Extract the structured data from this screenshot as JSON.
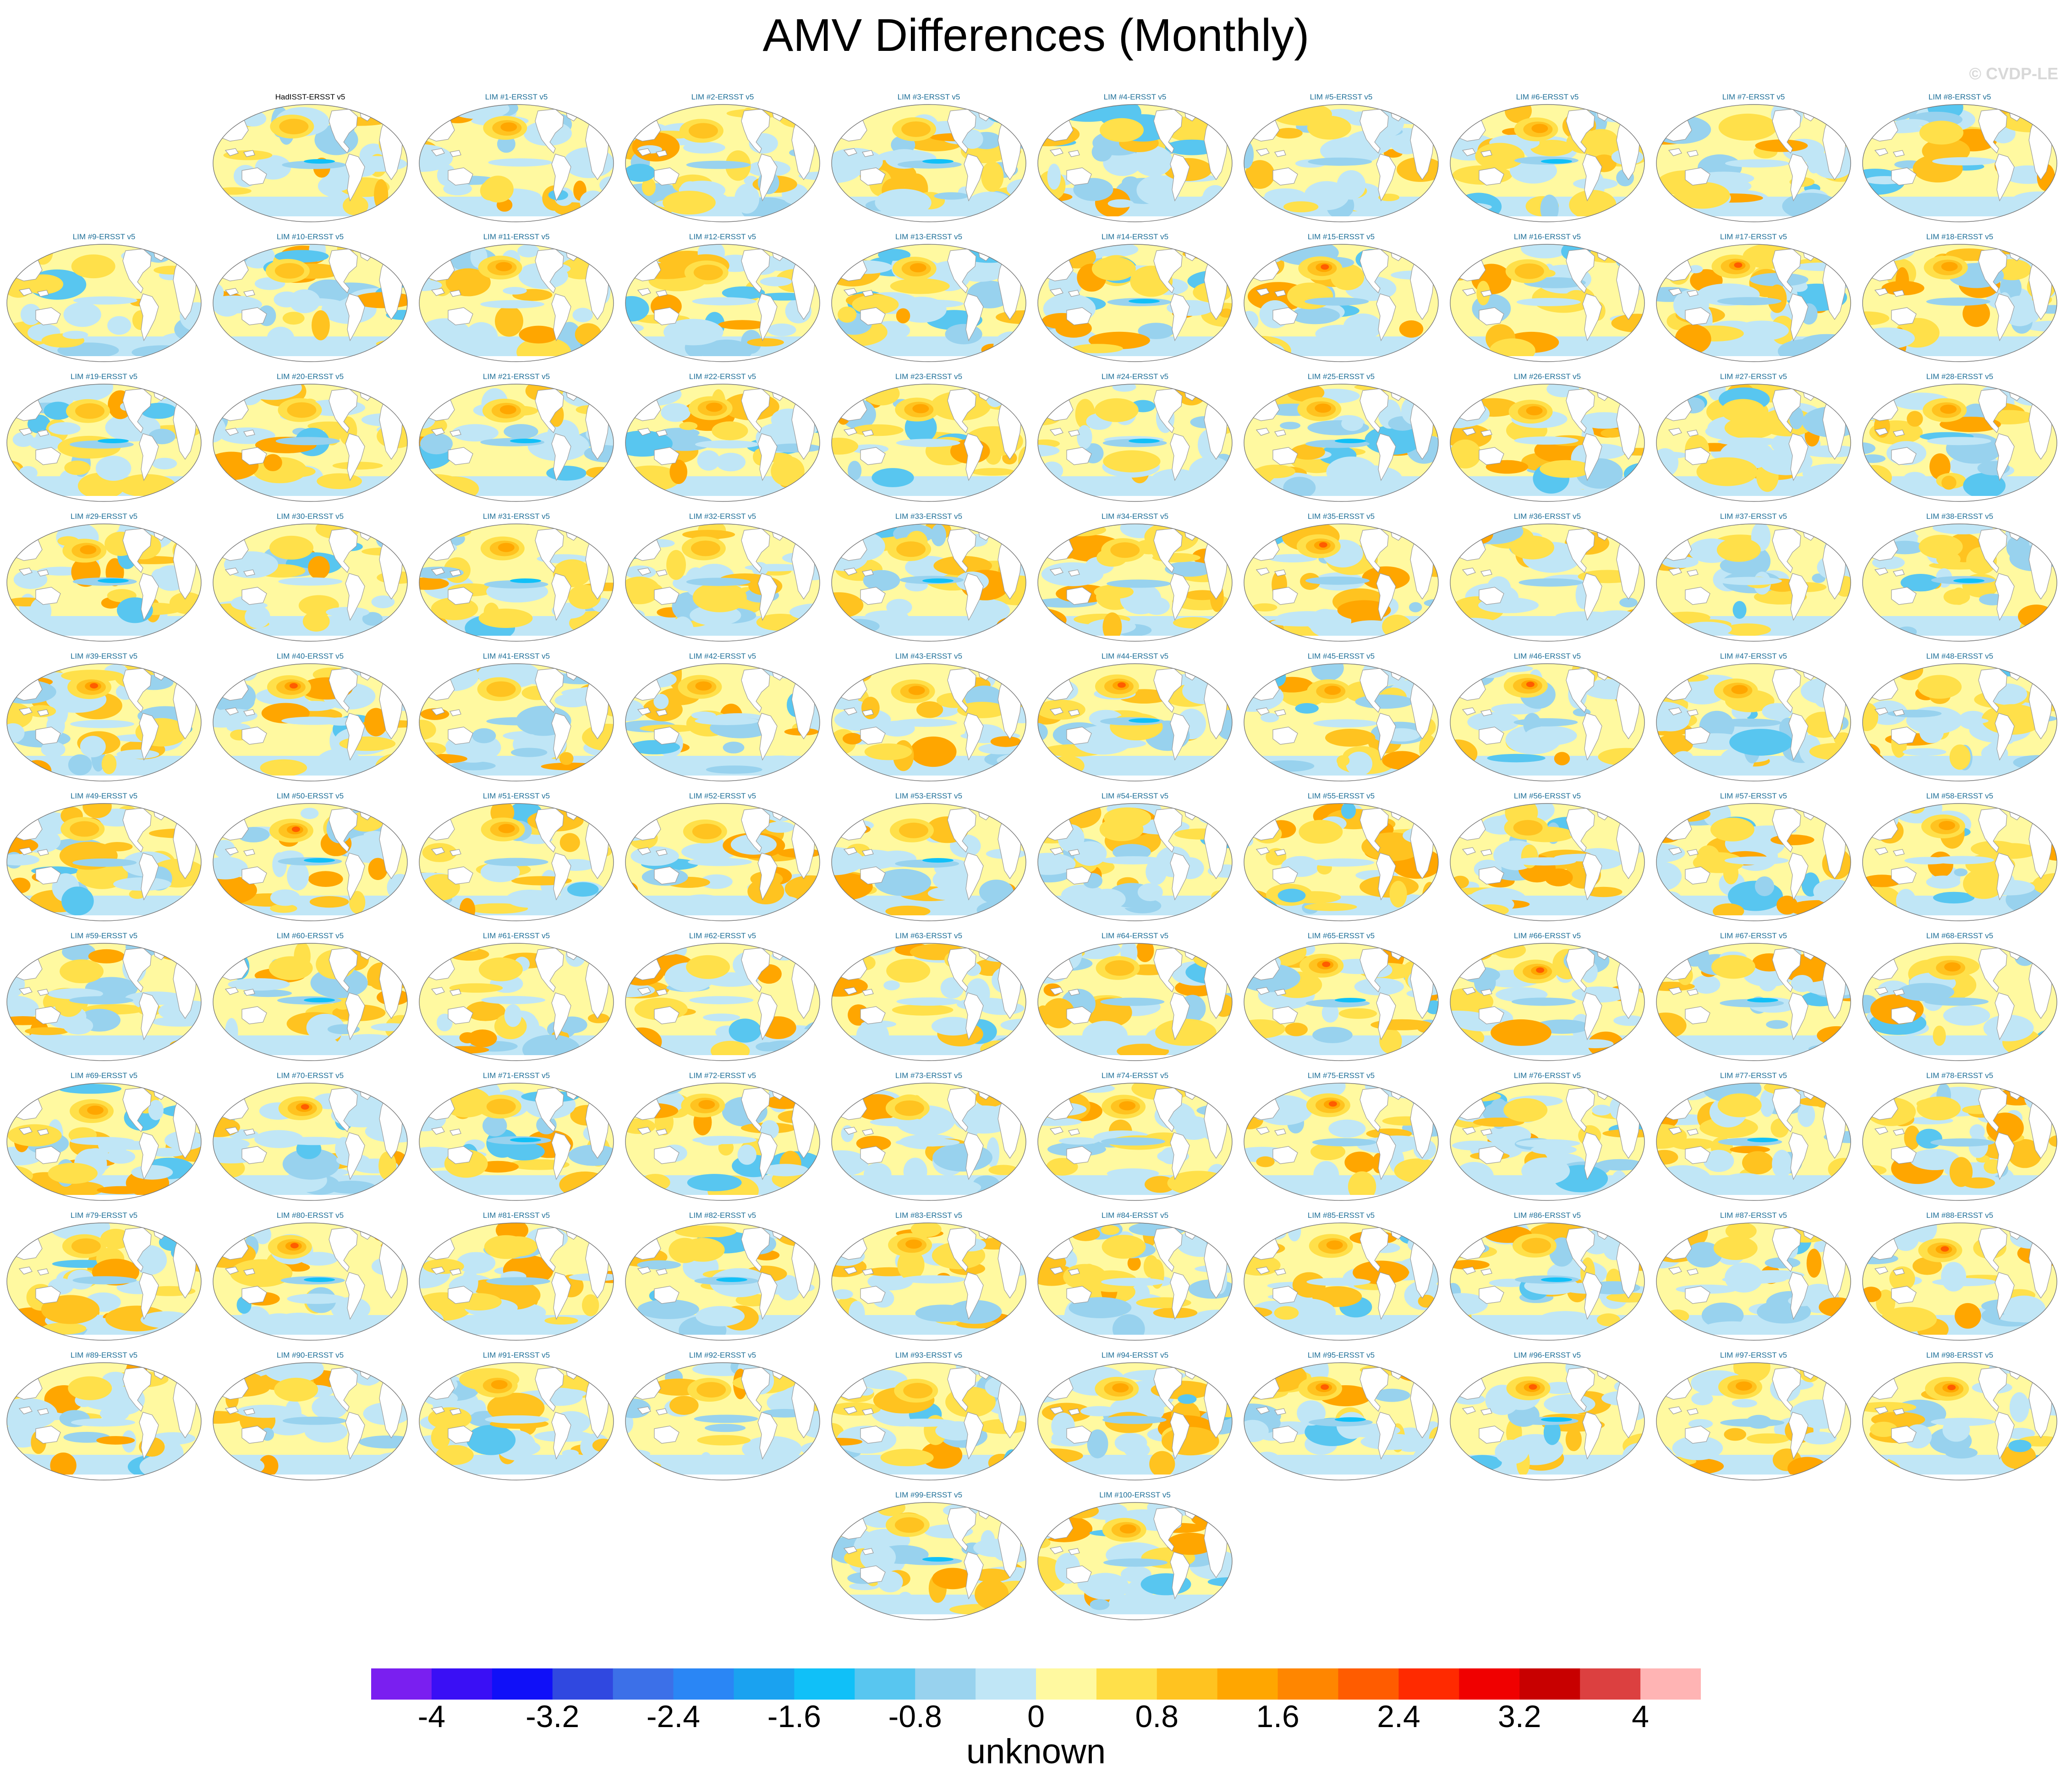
{
  "title": "AMV Differences (Monthly)",
  "watermark": "© CVDP-LE",
  "chart_data": {
    "type": "heatmap",
    "title": "AMV Differences (Monthly)",
    "panels": [
      "HadISST-ERSST v5",
      "LIM #1-ERSST v5",
      "LIM #2-ERSST v5",
      "LIM #3-ERSST v5",
      "LIM #4-ERSST v5",
      "LIM #5-ERSST v5",
      "LIM #6-ERSST v5",
      "LIM #7-ERSST v5",
      "LIM #8-ERSST v5",
      "LIM #9-ERSST v5",
      "LIM #10-ERSST v5",
      "LIM #11-ERSST v5",
      "LIM #12-ERSST v5",
      "LIM #13-ERSST v5",
      "LIM #14-ERSST v5",
      "LIM #15-ERSST v5",
      "LIM #16-ERSST v5",
      "LIM #17-ERSST v5",
      "LIM #18-ERSST v5",
      "LIM #19-ERSST v5",
      "LIM #20-ERSST v5",
      "LIM #21-ERSST v5",
      "LIM #22-ERSST v5",
      "LIM #23-ERSST v5",
      "LIM #24-ERSST v5",
      "LIM #25-ERSST v5",
      "LIM #26-ERSST v5",
      "LIM #27-ERSST v5",
      "LIM #28-ERSST v5",
      "LIM #29-ERSST v5",
      "LIM #30-ERSST v5",
      "LIM #31-ERSST v5",
      "LIM #32-ERSST v5",
      "LIM #33-ERSST v5",
      "LIM #34-ERSST v5",
      "LIM #35-ERSST v5",
      "LIM #36-ERSST v5",
      "LIM #37-ERSST v5",
      "LIM #38-ERSST v5",
      "LIM #39-ERSST v5",
      "LIM #40-ERSST v5",
      "LIM #41-ERSST v5",
      "LIM #42-ERSST v5",
      "LIM #43-ERSST v5",
      "LIM #44-ERSST v5",
      "LIM #45-ERSST v5",
      "LIM #46-ERSST v5",
      "LIM #47-ERSST v5",
      "LIM #48-ERSST v5",
      "LIM #49-ERSST v5",
      "LIM #50-ERSST v5",
      "LIM #51-ERSST v5",
      "LIM #52-ERSST v5",
      "LIM #53-ERSST v5",
      "LIM #54-ERSST v5",
      "LIM #55-ERSST v5",
      "LIM #56-ERSST v5",
      "LIM #57-ERSST v5",
      "LIM #58-ERSST v5",
      "LIM #59-ERSST v5",
      "LIM #60-ERSST v5",
      "LIM #61-ERSST v5",
      "LIM #62-ERSST v5",
      "LIM #63-ERSST v5",
      "LIM #64-ERSST v5",
      "LIM #65-ERSST v5",
      "LIM #66-ERSST v5",
      "LIM #67-ERSST v5",
      "LIM #68-ERSST v5",
      "LIM #69-ERSST v5",
      "LIM #70-ERSST v5",
      "LIM #71-ERSST v5",
      "LIM #72-ERSST v5",
      "LIM #73-ERSST v5",
      "LIM #74-ERSST v5",
      "LIM #75-ERSST v5",
      "LIM #76-ERSST v5",
      "LIM #77-ERSST v5",
      "LIM #78-ERSST v5",
      "LIM #79-ERSST v5",
      "LIM #80-ERSST v5",
      "LIM #81-ERSST v5",
      "LIM #82-ERSST v5",
      "LIM #83-ERSST v5",
      "LIM #84-ERSST v5",
      "LIM #85-ERSST v5",
      "LIM #86-ERSST v5",
      "LIM #87-ERSST v5",
      "LIM #88-ERSST v5",
      "LIM #89-ERSST v5",
      "LIM #90-ERSST v5",
      "LIM #91-ERSST v5",
      "LIM #92-ERSST v5",
      "LIM #93-ERSST v5",
      "LIM #94-ERSST v5",
      "LIM #95-ERSST v5",
      "LIM #96-ERSST v5",
      "LIM #97-ERSST v5",
      "LIM #98-ERSST v5",
      "LIM #99-ERSST v5",
      "LIM #100-ERSST v5"
    ],
    "colorbar": {
      "label": "unknown",
      "range": [
        -4.4,
        4.4
      ],
      "step": 0.4,
      "tick_labels": [
        "-4",
        "-3.2",
        "-2.4",
        "-1.6",
        "-0.8",
        "0",
        "0.8",
        "1.6",
        "2.4",
        "3.2",
        "4"
      ],
      "colors": [
        "#7a1ff0",
        "#3a0ff5",
        "#1010f8",
        "#3048e0",
        "#3c70e8",
        "#2a86f5",
        "#1aa2f0",
        "#10c0f8",
        "#58c6f0",
        "#98d2ee",
        "#c0e6f6",
        "#fff9a0",
        "#ffe04a",
        "#ffc320",
        "#ffa600",
        "#ff8600",
        "#ff5c00",
        "#ff2a00",
        "#f00000",
        "#c80000",
        "#dc4040",
        "#ffb4b4"
      ]
    }
  }
}
